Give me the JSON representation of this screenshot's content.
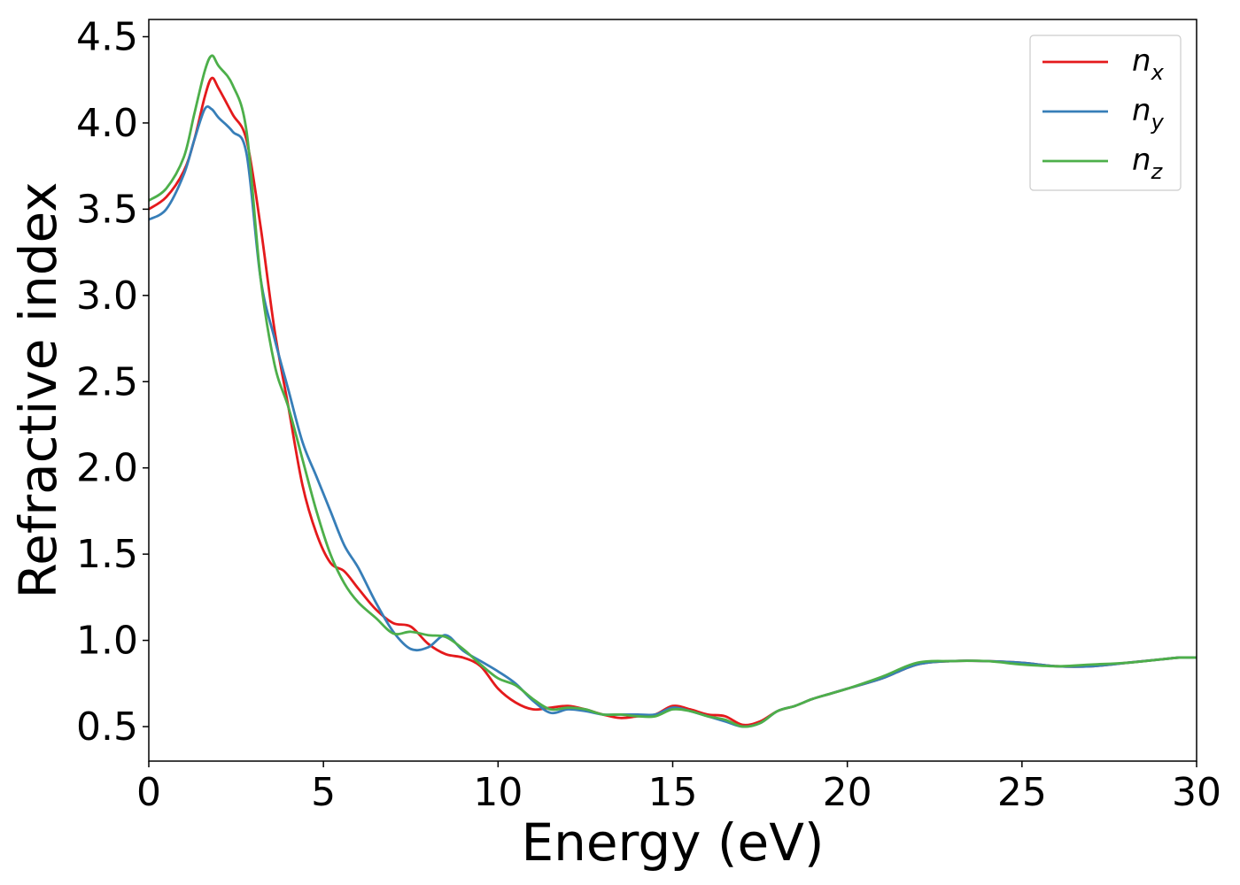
{
  "chart_data": {
    "type": "line",
    "xlabel": "Energy (eV)",
    "ylabel": "Refractive index",
    "xlim": [
      0,
      30
    ],
    "ylim": [
      0.3,
      4.6
    ],
    "xticks": [
      0,
      5,
      10,
      15,
      20,
      25,
      30
    ],
    "xtick_labels": [
      "0",
      "5",
      "10",
      "15",
      "20",
      "25",
      "30"
    ],
    "yticks": [
      0.5,
      1.0,
      1.5,
      2.0,
      2.5,
      3.0,
      3.5,
      4.0,
      4.5
    ],
    "ytick_labels": [
      "0.5",
      "1.0",
      "1.5",
      "2.0",
      "2.5",
      "3.0",
      "3.5",
      "4.0",
      "4.5"
    ],
    "grid": false,
    "legend_position": "top-right",
    "series": [
      {
        "name": "n",
        "subscript": "x",
        "color": "#e41a1c",
        "x": [
          0,
          0.5,
          1.0,
          1.3,
          1.6,
          1.8,
          2.0,
          2.4,
          2.8,
          3.2,
          3.6,
          4.0,
          4.4,
          4.8,
          5.2,
          5.6,
          6.0,
          6.5,
          7.0,
          7.5,
          8.0,
          8.5,
          9.0,
          9.5,
          10.0,
          10.5,
          11.0,
          11.5,
          12.0,
          12.5,
          13.0,
          13.5,
          14.0,
          14.5,
          15.0,
          15.5,
          16.0,
          16.5,
          17.0,
          17.5,
          18.0,
          18.5,
          19.0,
          19.5,
          20.0,
          21.0,
          22.0,
          23.0,
          24.0,
          25.0,
          26.0,
          27.0,
          28.0,
          29.0,
          29.5,
          30.0
        ],
        "y": [
          3.5,
          3.57,
          3.72,
          3.9,
          4.15,
          4.26,
          4.2,
          4.05,
          3.9,
          3.4,
          2.8,
          2.35,
          1.9,
          1.62,
          1.45,
          1.4,
          1.3,
          1.18,
          1.1,
          1.08,
          0.98,
          0.92,
          0.9,
          0.85,
          0.72,
          0.64,
          0.6,
          0.61,
          0.62,
          0.6,
          0.57,
          0.55,
          0.56,
          0.57,
          0.62,
          0.6,
          0.57,
          0.56,
          0.51,
          0.53,
          0.59,
          0.62,
          0.66,
          0.69,
          0.72,
          0.78,
          0.86,
          0.88,
          0.88,
          0.87,
          0.85,
          0.85,
          0.87,
          0.89,
          0.9,
          0.9
        ]
      },
      {
        "name": "n",
        "subscript": "y",
        "color": "#377eb8",
        "x": [
          0,
          0.5,
          1.0,
          1.3,
          1.6,
          1.8,
          2.0,
          2.4,
          2.8,
          3.2,
          3.6,
          4.0,
          4.4,
          4.8,
          5.2,
          5.6,
          6.0,
          6.5,
          7.0,
          7.5,
          8.0,
          8.5,
          9.0,
          9.5,
          10.0,
          10.5,
          11.0,
          11.5,
          12.0,
          12.5,
          13.0,
          13.5,
          14.0,
          14.5,
          15.0,
          15.5,
          16.0,
          16.5,
          17.0,
          17.5,
          18.0,
          18.5,
          19.0,
          19.5,
          20.0,
          21.0,
          22.0,
          23.0,
          24.0,
          25.0,
          26.0,
          27.0,
          28.0,
          29.0,
          29.5,
          30.0
        ],
        "y": [
          3.44,
          3.5,
          3.7,
          3.9,
          4.08,
          4.08,
          4.03,
          3.95,
          3.82,
          3.1,
          2.75,
          2.45,
          2.15,
          1.95,
          1.75,
          1.55,
          1.42,
          1.22,
          1.05,
          0.95,
          0.96,
          1.03,
          0.94,
          0.88,
          0.82,
          0.75,
          0.65,
          0.58,
          0.6,
          0.59,
          0.57,
          0.57,
          0.57,
          0.57,
          0.61,
          0.59,
          0.56,
          0.53,
          0.5,
          0.52,
          0.59,
          0.62,
          0.66,
          0.69,
          0.72,
          0.78,
          0.86,
          0.88,
          0.88,
          0.87,
          0.85,
          0.85,
          0.87,
          0.89,
          0.9,
          0.9
        ]
      },
      {
        "name": "n",
        "subscript": "z",
        "color": "#4daf4a",
        "x": [
          0,
          0.5,
          1.0,
          1.3,
          1.6,
          1.8,
          2.0,
          2.4,
          2.8,
          3.2,
          3.6,
          4.0,
          4.4,
          4.8,
          5.2,
          5.6,
          6.0,
          6.5,
          7.0,
          7.5,
          8.0,
          8.5,
          9.0,
          9.5,
          10.0,
          10.5,
          11.0,
          11.5,
          12.0,
          12.5,
          13.0,
          13.5,
          14.0,
          14.5,
          15.0,
          15.5,
          16.0,
          16.5,
          17.0,
          17.5,
          18.0,
          18.5,
          19.0,
          19.5,
          20.0,
          21.0,
          22.0,
          23.0,
          24.0,
          25.0,
          26.0,
          27.0,
          28.0,
          29.0,
          29.5,
          30.0
        ],
        "y": [
          3.55,
          3.62,
          3.8,
          4.05,
          4.3,
          4.39,
          4.33,
          4.22,
          3.95,
          3.1,
          2.6,
          2.35,
          2.05,
          1.75,
          1.5,
          1.33,
          1.22,
          1.13,
          1.04,
          1.05,
          1.03,
          1.02,
          0.95,
          0.86,
          0.78,
          0.74,
          0.66,
          0.6,
          0.61,
          0.6,
          0.57,
          0.57,
          0.56,
          0.56,
          0.6,
          0.59,
          0.56,
          0.54,
          0.5,
          0.52,
          0.59,
          0.62,
          0.66,
          0.69,
          0.72,
          0.79,
          0.87,
          0.88,
          0.88,
          0.86,
          0.85,
          0.86,
          0.87,
          0.89,
          0.9,
          0.9
        ]
      }
    ]
  }
}
